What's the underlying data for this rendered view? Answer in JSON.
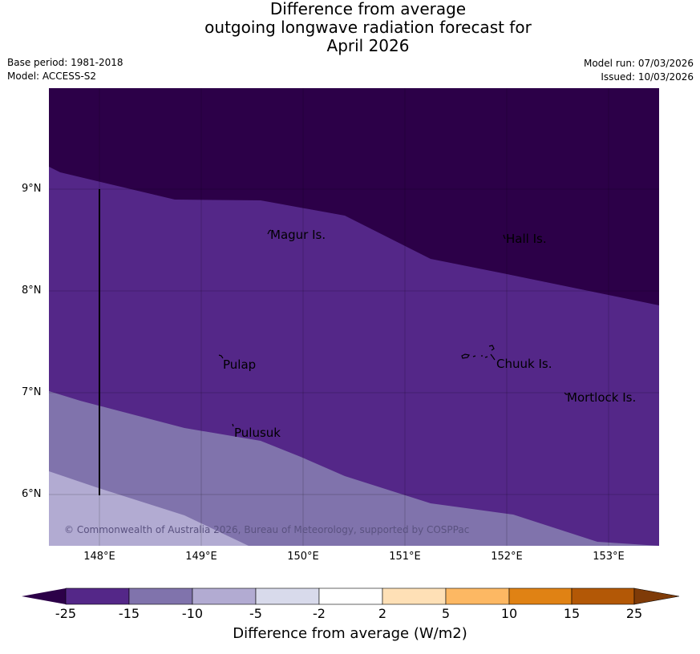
{
  "title": {
    "line1": "Difference from average",
    "line2": "outgoing longwave radiation forecast for",
    "line3": "April 2026"
  },
  "meta": {
    "base_period": "Base period: 1981-2018",
    "model": "Model: ACCESS-S2",
    "model_run": "Model run: 07/03/2026",
    "issued": "Issued: 10/03/2026"
  },
  "map": {
    "lat_labels": [
      "9°N",
      "8°N",
      "7°N",
      "6°N"
    ],
    "lon_labels": [
      "148°E",
      "149°E",
      "150°E",
      "151°E",
      "152°E",
      "153°E"
    ],
    "places": {
      "magur": "Magur Is.",
      "hall": "Hall Is.",
      "pulap": "Pulap",
      "chuuk": "Chuuk Is.",
      "mortlock": "Mortlock Is.",
      "pulusuk": "Pulusuk"
    },
    "copyright": "© Commonwealth of Australia 2026, Bureau of Meteorology, supported by COSPPac",
    "colors": {
      "below_25": "#2c0048",
      "m25_m15": "#542788",
      "m15_m10": "#8073ac",
      "m10_m5": "#b2abd2",
      "m5_m2": "#d8daeb",
      "m2_2": "#ffffff",
      "p2_5": "#fee0b6",
      "p5_10": "#fdb863",
      "p10_15": "#e08214",
      "p15_25": "#b35806",
      "above_25": "#7f3b08"
    }
  },
  "colorbar": {
    "ticks": [
      "-25",
      "-15",
      "-10",
      "-5",
      "-2",
      "2",
      "5",
      "10",
      "15",
      "25"
    ],
    "title": "Difference from average (W/m2)"
  }
}
